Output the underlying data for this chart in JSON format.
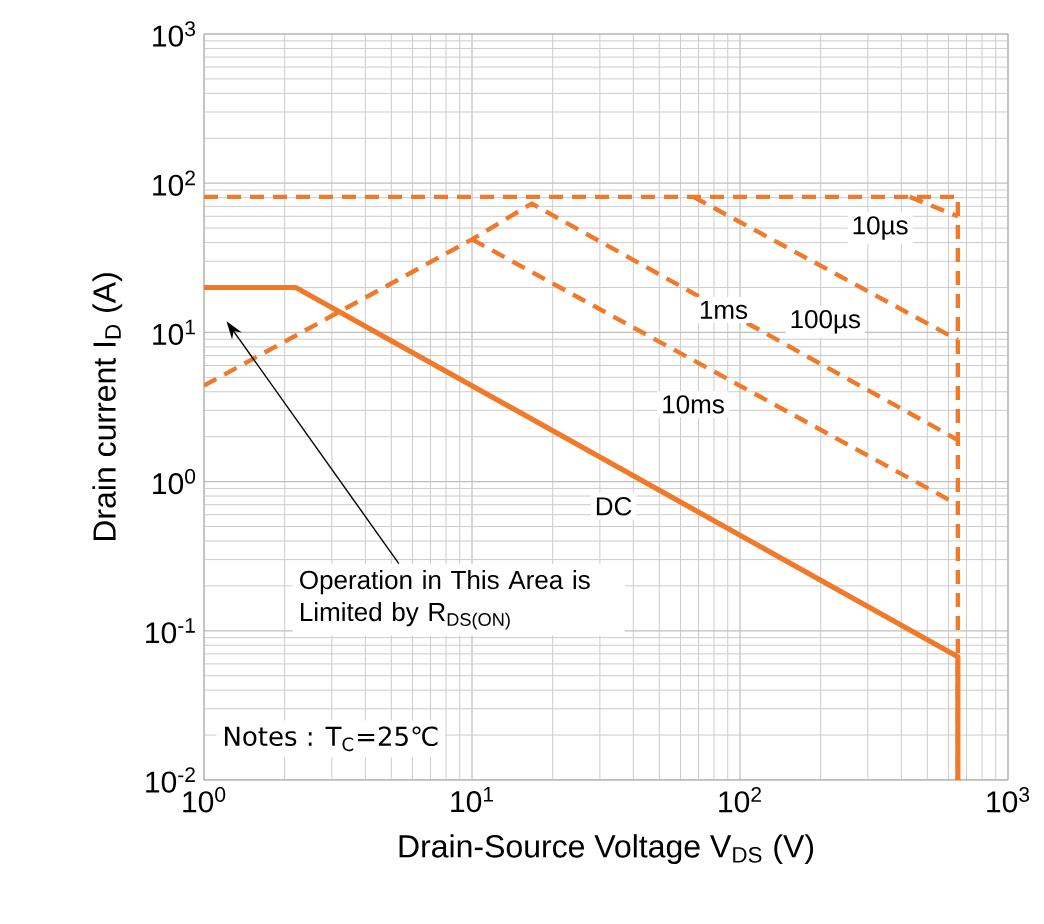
{
  "chart_data": {
    "type": "line",
    "xlabel": "Drain-Source Voltage V$_{DS}$ (V)",
    "ylabel": "Drain current I$_{D}$ (A)",
    "log": "xy",
    "grid": true,
    "legend": false,
    "xlim": [
      1,
      1000
    ],
    "ylim": [
      0.01,
      1000
    ],
    "xticks": [
      {
        "value": 1,
        "label": "10$^{0}$"
      },
      {
        "value": 10,
        "label": "10$^{1}$"
      },
      {
        "value": 100,
        "label": "10$^{2}$"
      },
      {
        "value": 1000,
        "label": "10$^{3}$"
      }
    ],
    "yticks": [
      {
        "value": 0.01,
        "label": "10$^{-2}$"
      },
      {
        "value": 0.1,
        "label": "10$^{-1}$"
      },
      {
        "value": 1,
        "label": "10$^{0}$"
      },
      {
        "value": 10,
        "label": "10$^{1}$"
      },
      {
        "value": 100,
        "label": "10$^{2}$"
      },
      {
        "value": 1000,
        "label": "10$^{3}$"
      }
    ],
    "series": [
      {
        "color": "#f07a2a",
        "line_style": "dashed",
        "x": [
          1,
          650,
          650
        ],
        "values": [
          81,
          81,
          0.01
        ]
      },
      {
        "name": "10µs",
        "color": "#f07a2a",
        "line_style": "dashed",
        "x": [
          430,
          650
        ],
        "values": [
          81,
          60
        ]
      },
      {
        "name": "100µs",
        "color": "#f07a2a",
        "line_style": "dashed",
        "x": [
          67,
          650
        ],
        "values": [
          81,
          8.9
        ]
      },
      {
        "name": "1ms",
        "color": "#f07a2a",
        "line_style": "dashed",
        "x": [
          1,
          10,
          16.7,
          650
        ],
        "values": [
          4.4,
          42,
          73,
          1.9
        ]
      },
      {
        "name": "10ms",
        "color": "#f07a2a",
        "line_style": "dashed",
        "x": [
          10,
          650
        ],
        "values": [
          42,
          0.7
        ]
      },
      {
        "name": "DC",
        "color": "#f07a2a",
        "line_style": "solid",
        "x": [
          1,
          2.2,
          650,
          650
        ],
        "values": [
          20,
          20,
          0.067,
          0.01
        ]
      }
    ],
    "annotations": [
      "Operation in This Area is Limited by R$_{DS(ON)}$",
      "Notes : T$_{C}$=25℃"
    ]
  }
}
